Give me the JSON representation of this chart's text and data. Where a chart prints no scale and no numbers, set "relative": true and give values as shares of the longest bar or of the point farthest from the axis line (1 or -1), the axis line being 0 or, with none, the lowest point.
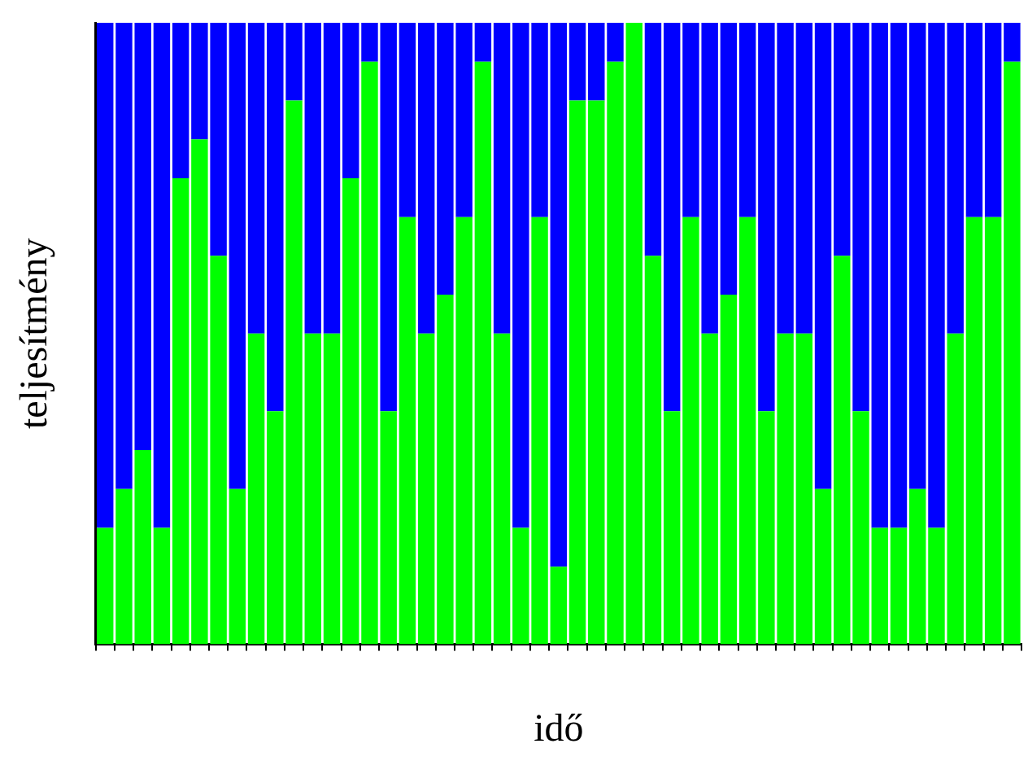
{
  "chart_data": {
    "type": "bar",
    "stacked": true,
    "relative": true,
    "xlabel": "idő",
    "ylabel": "teljesítmény",
    "legend": false,
    "grid": false,
    "categories": [
      null,
      null,
      null,
      null,
      null,
      null,
      null,
      null,
      null,
      null,
      null,
      null,
      null,
      null,
      null,
      null,
      null,
      null,
      null,
      null,
      null,
      null,
      null,
      null,
      null,
      null,
      null,
      null,
      null,
      null,
      null,
      null,
      null,
      null,
      null,
      null,
      null,
      null,
      null,
      null,
      null,
      null,
      null,
      null,
      null,
      null,
      null,
      null,
      null
    ],
    "series": [
      {
        "color": "#00ff00",
        "values": [
          0.1875,
          0.25,
          0.3125,
          0.1875,
          0.75,
          0.8125,
          0.625,
          0.25,
          0.5,
          0.375,
          0.875,
          0.5,
          0.5,
          0.75,
          0.9375,
          0.375,
          0.6875,
          0.5,
          0.5625,
          0.6875,
          0.9375,
          0.5,
          0.1875,
          0.6875,
          0.125,
          0.875,
          0.875,
          0.9375,
          1,
          0.625,
          0.375,
          0.6875,
          0.5,
          0.5625,
          0.6875,
          0.375,
          0.5,
          0.5,
          0.25,
          0.625,
          0.375,
          0.1875,
          0.1875,
          0.25,
          0.1875,
          0.5,
          0.6875,
          0.6875,
          0.9375
        ]
      },
      {
        "color": "#0000ff",
        "values": [
          0.8125,
          0.75,
          0.6875,
          0.8125,
          0.25,
          0.1875,
          0.375,
          0.75,
          0.5,
          0.625,
          0.125,
          0.5,
          0.5,
          0.25,
          0.0625,
          0.625,
          0.3125,
          0.5,
          0.4375,
          0.3125,
          0.0625,
          0.5,
          0.8125,
          0.3125,
          0.875,
          0.125,
          0.125,
          0.0625,
          0,
          0.375,
          0.625,
          0.3125,
          0.5,
          0.4375,
          0.3125,
          0.625,
          0.5,
          0.5,
          0.75,
          0.375,
          0.625,
          0.8125,
          0.8125,
          0.75,
          0.8125,
          0.5,
          0.3125,
          0.3125,
          0.0625
        ]
      }
    ]
  }
}
